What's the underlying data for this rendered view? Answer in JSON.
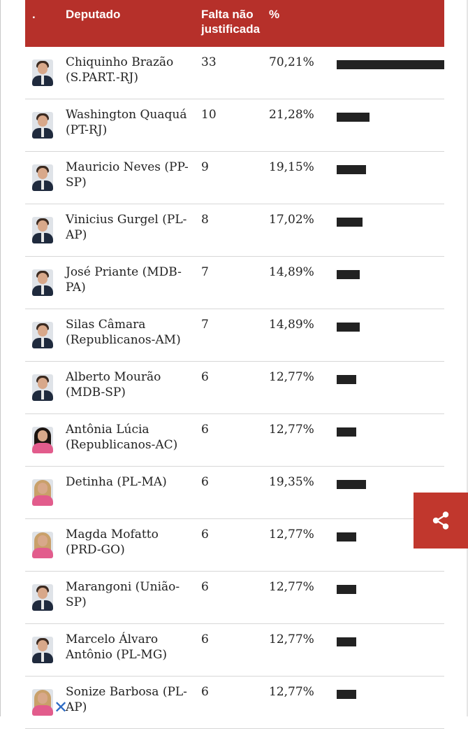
{
  "table": {
    "headers": {
      "index": ".",
      "name": "Deputado",
      "falta": "Falta não justificada",
      "pct": "%"
    },
    "rows": [
      {
        "name": "Chiquinho Brazão (S.PART.-RJ)",
        "falta": "33",
        "pct": "70,21%",
        "share": 0.7021,
        "avatar": "male"
      },
      {
        "name": "Washington Quaquá (PT-RJ)",
        "falta": "10",
        "pct": "21,28%",
        "share": 0.2128,
        "avatar": "male"
      },
      {
        "name": "Mauricio Neves (PP-SP)",
        "falta": "9",
        "pct": "19,15%",
        "share": 0.1915,
        "avatar": "male"
      },
      {
        "name": "Vinicius Gurgel (PL-AP)",
        "falta": "8",
        "pct": "17,02%",
        "share": 0.1702,
        "avatar": "male"
      },
      {
        "name": "José Priante (MDB-PA)",
        "falta": "7",
        "pct": "14,89%",
        "share": 0.1489,
        "avatar": "male"
      },
      {
        "name": "Silas Câmara (Republicanos-AM)",
        "falta": "7",
        "pct": "14,89%",
        "share": 0.1489,
        "avatar": "male"
      },
      {
        "name": "Alberto Mourão (MDB-SP)",
        "falta": "6",
        "pct": "12,77%",
        "share": 0.1277,
        "avatar": "male"
      },
      {
        "name": "Antônia Lúcia (Republicanos-AC)",
        "falta": "6",
        "pct": "12,77%",
        "share": 0.1277,
        "avatar": "female-dark"
      },
      {
        "name": "Detinha (PL-MA)",
        "falta": "6",
        "pct": "19,35%",
        "share": 0.1935,
        "avatar": "female"
      },
      {
        "name": "Magda Mofatto (PRD-GO)",
        "falta": "6",
        "pct": "12,77%",
        "share": 0.1277,
        "avatar": "female"
      },
      {
        "name": "Marangoni (União-SP)",
        "falta": "6",
        "pct": "12,77%",
        "share": 0.1277,
        "avatar": "male"
      },
      {
        "name": "Marcelo Álvaro Antônio (PL-MG)",
        "falta": "6",
        "pct": "12,77%",
        "share": 0.1277,
        "avatar": "male"
      },
      {
        "name": "Sonize Barbosa (PL-AP)",
        "falta": "6",
        "pct": "12,77%",
        "share": 0.1277,
        "avatar": "female"
      }
    ]
  },
  "icons": {
    "share": "share-icon",
    "close": "close-icon"
  },
  "colors": {
    "header_bg": "#b6302a",
    "bar": "#222222",
    "share_bg": "#c1372d"
  }
}
